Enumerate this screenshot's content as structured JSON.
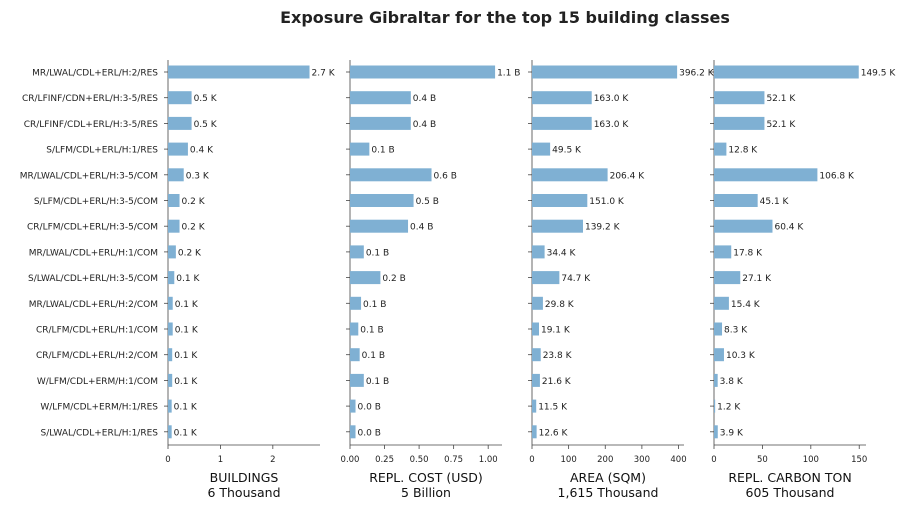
{
  "title": "Exposure Gibraltar for the top 15 building classes",
  "chart_data": [
    {
      "type": "bar",
      "orientation": "horizontal",
      "categories": [
        "MR/LWAL/CDL+ERL/H:2/RES",
        "CR/LFINF/CDN+ERL/H:3-5/RES",
        "CR/LFINF/CDL+ERL/H:3-5/RES",
        "S/LFM/CDL+ERL/H:1/RES",
        "MR/LWAL/CDL+ERL/H:3-5/COM",
        "S/LFM/CDL+ERL/H:3-5/COM",
        "CR/LFM/CDL+ERL/H:3-5/COM",
        "MR/LWAL/CDL+ERL/H:1/COM",
        "S/LWAL/CDL+ERL/H:3-5/COM",
        "MR/LWAL/CDL+ERL/H:2/COM",
        "CR/LFM/CDL+ERL/H:1/COM",
        "CR/LFM/CDL+ERL/H:2/COM",
        "W/LFM/CDL+ERM/H:1/COM",
        "W/LFM/CDL+ERM/H:1/RES",
        "S/LWAL/CDL+ERL/H:1/RES"
      ],
      "values": [
        2.7,
        0.45,
        0.45,
        0.38,
        0.3,
        0.22,
        0.22,
        0.15,
        0.12,
        0.09,
        0.09,
        0.08,
        0.08,
        0.07,
        0.07
      ],
      "labels": [
        "2.7 K",
        "0.5 K",
        "0.5 K",
        "0.4 K",
        "0.3 K",
        "0.2 K",
        "0.2 K",
        "0.2 K",
        "0.1 K",
        "0.1 K",
        "0.1 K",
        "0.1 K",
        "0.1 K",
        "0.1 K",
        "0.1 K"
      ],
      "xlim": [
        0,
        2.9
      ],
      "xticks": [
        0,
        1,
        2
      ],
      "xtick_labels": [
        "0",
        "1",
        "2"
      ],
      "xlabel": "BUILDINGS",
      "subtitle": "6 Thousand"
    },
    {
      "type": "bar",
      "orientation": "horizontal",
      "categories": [
        "MR/LWAL/CDL+ERL/H:2/RES",
        "CR/LFINF/CDN+ERL/H:3-5/RES",
        "CR/LFINF/CDL+ERL/H:3-5/RES",
        "S/LFM/CDL+ERL/H:1/RES",
        "MR/LWAL/CDL+ERL/H:3-5/COM",
        "S/LFM/CDL+ERL/H:3-5/COM",
        "CR/LFM/CDL+ERL/H:3-5/COM",
        "MR/LWAL/CDL+ERL/H:1/COM",
        "S/LWAL/CDL+ERL/H:3-5/COM",
        "MR/LWAL/CDL+ERL/H:2/COM",
        "CR/LFM/CDL+ERL/H:1/COM",
        "CR/LFM/CDL+ERL/H:2/COM",
        "W/LFM/CDL+ERM/H:1/COM",
        "W/LFM/CDL+ERM/H:1/RES",
        "S/LWAL/CDL+ERL/H:1/RES"
      ],
      "values": [
        1.05,
        0.44,
        0.44,
        0.14,
        0.59,
        0.46,
        0.42,
        0.1,
        0.22,
        0.08,
        0.06,
        0.07,
        0.1,
        0.04,
        0.04
      ],
      "labels": [
        "1.1 B",
        "0.4 B",
        "0.4 B",
        "0.1 B",
        "0.6 B",
        "0.5 B",
        "0.4 B",
        "0.1 B",
        "0.2 B",
        "0.1 B",
        "0.1 B",
        "0.1 B",
        "0.1 B",
        "0.0 B",
        "0.0 B"
      ],
      "xlim": [
        0,
        1.1
      ],
      "xticks": [
        0,
        0.25,
        0.5,
        0.75,
        1.0
      ],
      "xtick_labels": [
        "0.00",
        "0.25",
        "0.50",
        "0.75",
        "1.00"
      ],
      "xlabel": "REPL. COST (USD)",
      "subtitle": "5 Billion"
    },
    {
      "type": "bar",
      "orientation": "horizontal",
      "categories": [
        "MR/LWAL/CDL+ERL/H:2/RES",
        "CR/LFINF/CDN+ERL/H:3-5/RES",
        "CR/LFINF/CDL+ERL/H:3-5/RES",
        "S/LFM/CDL+ERL/H:1/RES",
        "MR/LWAL/CDL+ERL/H:3-5/COM",
        "S/LFM/CDL+ERL/H:3-5/COM",
        "CR/LFM/CDL+ERL/H:3-5/COM",
        "MR/LWAL/CDL+ERL/H:1/COM",
        "S/LWAL/CDL+ERL/H:3-5/COM",
        "MR/LWAL/CDL+ERL/H:2/COM",
        "CR/LFM/CDL+ERL/H:1/COM",
        "CR/LFM/CDL+ERL/H:2/COM",
        "W/LFM/CDL+ERM/H:1/COM",
        "W/LFM/CDL+ERM/H:1/RES",
        "S/LWAL/CDL+ERL/H:1/RES"
      ],
      "values": [
        396.2,
        163.0,
        163.0,
        49.5,
        206.4,
        151.0,
        139.2,
        34.4,
        74.7,
        29.8,
        19.1,
        23.8,
        21.6,
        11.5,
        12.6
      ],
      "labels": [
        "396.2 K",
        "163.0 K",
        "163.0 K",
        "49.5 K",
        "206.4 K",
        "151.0 K",
        "139.2 K",
        "34.4 K",
        "74.7 K",
        "29.8 K",
        "19.1 K",
        "23.8 K",
        "21.6 K",
        "11.5 K",
        "12.6 K"
      ],
      "xlim": [
        0,
        415
      ],
      "xticks": [
        0,
        100,
        200,
        300,
        400
      ],
      "xtick_labels": [
        "0",
        "100",
        "200",
        "300",
        "400"
      ],
      "xlabel": "AREA (SQM)",
      "subtitle": "1,615 Thousand"
    },
    {
      "type": "bar",
      "orientation": "horizontal",
      "categories": [
        "MR/LWAL/CDL+ERL/H:2/RES",
        "CR/LFINF/CDN+ERL/H:3-5/RES",
        "CR/LFINF/CDL+ERL/H:3-5/RES",
        "S/LFM/CDL+ERL/H:1/RES",
        "MR/LWAL/CDL+ERL/H:3-5/COM",
        "S/LFM/CDL+ERL/H:3-5/COM",
        "CR/LFM/CDL+ERL/H:3-5/COM",
        "MR/LWAL/CDL+ERL/H:1/COM",
        "S/LWAL/CDL+ERL/H:3-5/COM",
        "MR/LWAL/CDL+ERL/H:2/COM",
        "CR/LFM/CDL+ERL/H:1/COM",
        "CR/LFM/CDL+ERL/H:2/COM",
        "W/LFM/CDL+ERM/H:1/COM",
        "W/LFM/CDL+ERM/H:1/RES",
        "S/LWAL/CDL+ERL/H:1/RES"
      ],
      "values": [
        149.5,
        52.1,
        52.1,
        12.8,
        106.8,
        45.1,
        60.4,
        17.8,
        27.1,
        15.4,
        8.3,
        10.3,
        3.8,
        1.2,
        3.9
      ],
      "labels": [
        "149.5 K",
        "52.1 K",
        "52.1 K",
        "12.8 K",
        "106.8 K",
        "45.1 K",
        "60.4 K",
        "17.8 K",
        "27.1 K",
        "15.4 K",
        "8.3 K",
        "10.3 K",
        "3.8 K",
        "1.2 K",
        "3.9 K"
      ],
      "xlim": [
        0,
        157
      ],
      "xticks": [
        0,
        50,
        100,
        150
      ],
      "xtick_labels": [
        "0",
        "50",
        "100",
        "150"
      ],
      "xlabel": "REPL. CARBON TON",
      "subtitle": "605 Thousand"
    }
  ],
  "colors": {
    "bar": "#7fb0d3",
    "axis": "#444444",
    "text": "#222222"
  }
}
